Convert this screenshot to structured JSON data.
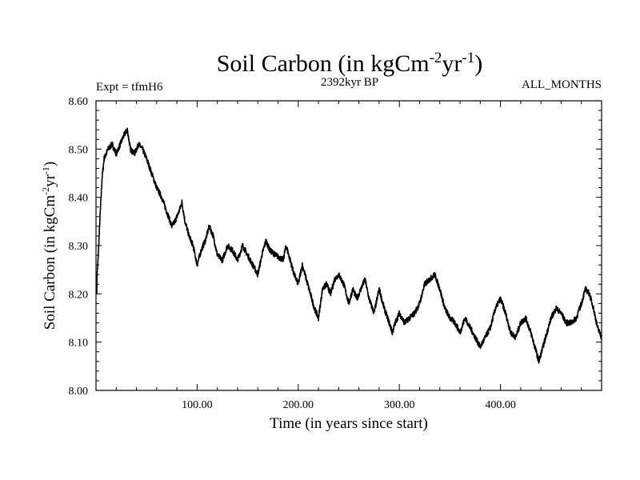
{
  "chart_data": {
    "type": "line",
    "title": "Soil Carbon (in kgCm",
    "title_sup1": "-2",
    "title_mid": "yr",
    "title_sup2": "-1",
    "title_end": ")",
    "subtitle_left": "Expt = tfmH6",
    "subtitle_center": "2392kyr BP",
    "subtitle_right": "ALL_MONTHS",
    "xlabel": "Time (in years since start)",
    "ylabel": "Soil Carbon (in kgCm",
    "ylabel_sup1": "-2",
    "ylabel_mid": "yr",
    "ylabel_sup2": "-1",
    "ylabel_end": ")",
    "xlim": [
      0,
      500
    ],
    "ylim": [
      8.0,
      8.6
    ],
    "x_ticks": [
      100,
      200,
      300,
      400
    ],
    "x_tick_labels": [
      "100.00",
      "200.00",
      "300.00",
      "400.00"
    ],
    "y_ticks": [
      8.0,
      8.1,
      8.2,
      8.3,
      8.4,
      8.5,
      8.6
    ],
    "y_tick_labels": [
      "8.00",
      "8.10",
      "8.20",
      "8.30",
      "8.40",
      "8.50",
      "8.60"
    ],
    "line_color": "#000000",
    "noise_amplitude": 0.006,
    "series": [
      {
        "name": "Soil Carbon",
        "x": [
          0,
          2,
          4,
          6,
          8,
          12,
          16,
          20,
          24,
          28,
          31,
          34,
          38,
          42,
          46,
          50,
          55,
          60,
          65,
          70,
          75,
          78,
          82,
          85,
          88,
          92,
          96,
          100,
          104,
          108,
          112,
          116,
          120,
          125,
          130,
          135,
          140,
          145,
          150,
          155,
          160,
          164,
          168,
          172,
          178,
          185,
          188,
          192,
          196,
          200,
          204,
          208,
          212,
          216,
          220,
          224,
          228,
          232,
          236,
          240,
          245,
          250,
          254,
          258,
          262,
          266,
          270,
          275,
          280,
          285,
          290,
          293,
          296,
          300,
          305,
          310,
          315,
          320,
          325,
          330,
          335,
          340,
          345,
          350,
          355,
          360,
          365,
          370,
          375,
          380,
          385,
          390,
          395,
          400,
          405,
          410,
          415,
          420,
          425,
          430,
          434,
          438,
          442,
          446,
          450,
          455,
          460,
          465,
          470,
          475,
          480,
          484,
          488,
          492,
          496,
          500
        ],
        "y": [
          8.2,
          8.27,
          8.36,
          8.44,
          8.48,
          8.5,
          8.51,
          8.49,
          8.51,
          8.53,
          8.54,
          8.5,
          8.49,
          8.51,
          8.5,
          8.48,
          8.45,
          8.42,
          8.4,
          8.37,
          8.34,
          8.35,
          8.37,
          8.39,
          8.35,
          8.32,
          8.3,
          8.26,
          8.29,
          8.31,
          8.34,
          8.32,
          8.28,
          8.27,
          8.3,
          8.29,
          8.27,
          8.3,
          8.28,
          8.26,
          8.24,
          8.28,
          8.31,
          8.29,
          8.28,
          8.27,
          8.3,
          8.27,
          8.24,
          8.22,
          8.26,
          8.23,
          8.2,
          8.17,
          8.15,
          8.21,
          8.22,
          8.2,
          8.23,
          8.24,
          8.22,
          8.18,
          8.21,
          8.19,
          8.21,
          8.23,
          8.19,
          8.16,
          8.21,
          8.17,
          8.14,
          8.12,
          8.14,
          8.16,
          8.14,
          8.15,
          8.16,
          8.18,
          8.22,
          8.23,
          8.24,
          8.21,
          8.17,
          8.15,
          8.14,
          8.12,
          8.15,
          8.13,
          8.11,
          8.09,
          8.11,
          8.13,
          8.17,
          8.19,
          8.16,
          8.12,
          8.11,
          8.14,
          8.15,
          8.12,
          8.09,
          8.06,
          8.09,
          8.12,
          8.15,
          8.17,
          8.16,
          8.14,
          8.14,
          8.15,
          8.18,
          8.21,
          8.2,
          8.17,
          8.13,
          8.11
        ]
      }
    ]
  }
}
